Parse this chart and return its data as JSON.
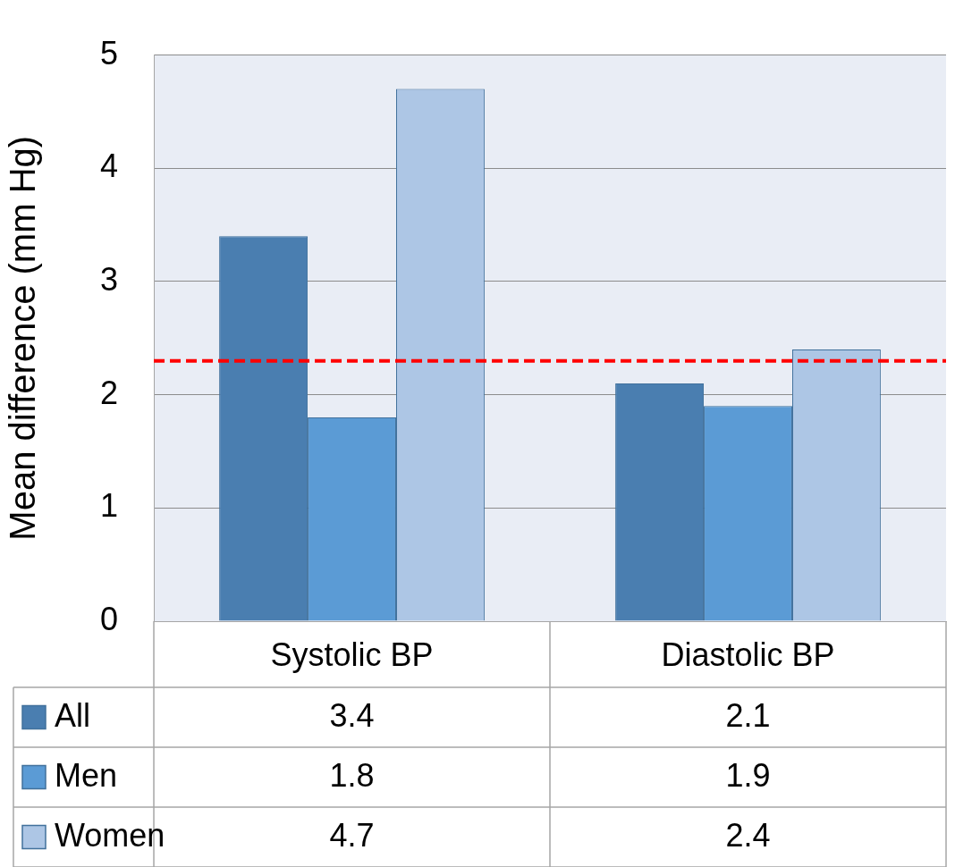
{
  "chart_data": {
    "type": "bar",
    "ylabel": "Mean difference (mm Hg)",
    "categories": [
      "Systolic BP",
      "Diastolic BP"
    ],
    "series": [
      {
        "name": "All",
        "color": "#4a7eb0",
        "values": [
          3.4,
          2.1
        ]
      },
      {
        "name": "Men",
        "color": "#5b9bd5",
        "values": [
          1.8,
          1.9
        ]
      },
      {
        "name": "Women",
        "color": "#adc6e5",
        "values": [
          4.7,
          2.4
        ]
      }
    ],
    "ylim": [
      0,
      5
    ],
    "yticks": [
      0,
      1,
      2,
      3,
      4,
      5
    ],
    "grid": "y",
    "legend": "bottom",
    "data_labels": true,
    "ref_lines": [
      {
        "axis": "y",
        "value": 2.3,
        "color": "#ff0000",
        "line_style": "dashed"
      }
    ]
  }
}
